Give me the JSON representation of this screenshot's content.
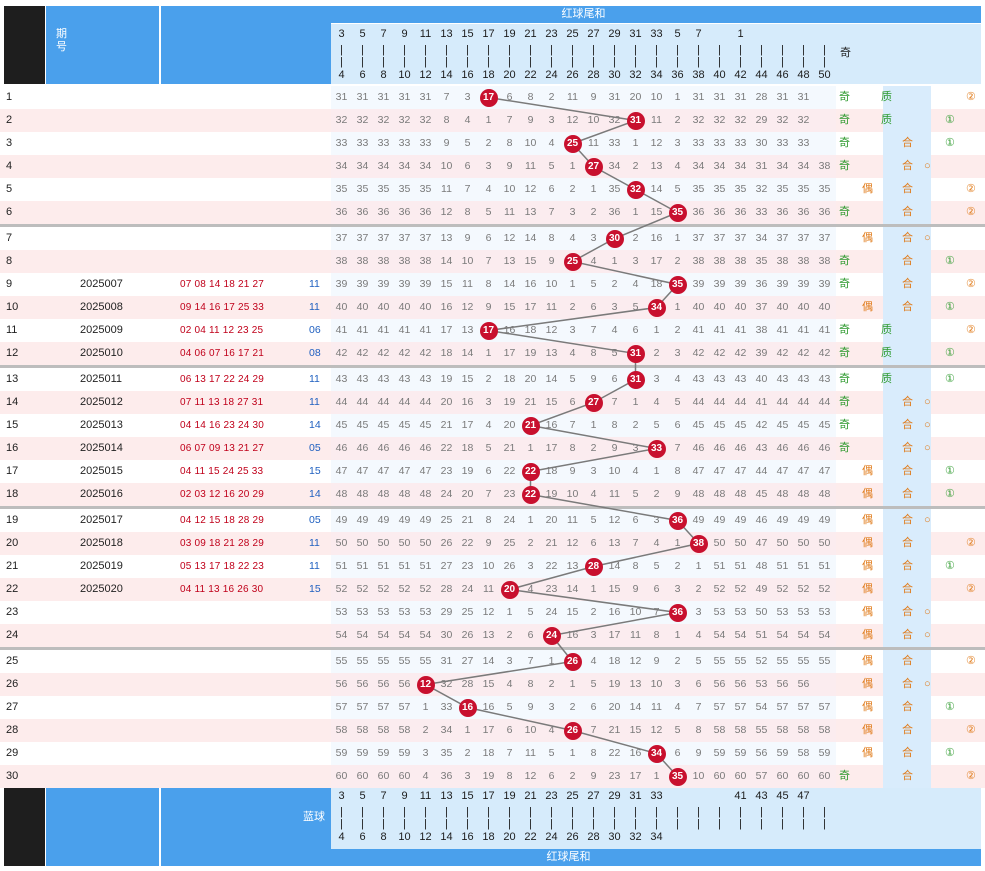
{
  "header": {
    "top_title": "红球尾和",
    "issue_label": "期号",
    "blue_label": "蓝球",
    "bottom_title": "红球尾和",
    "odd_label": "奇"
  },
  "columns": {
    "top": [
      "3",
      "5",
      "7",
      "9",
      "11",
      "13",
      "15",
      "17",
      "19",
      "21",
      "23",
      "25",
      "27",
      "29",
      "31",
      "33",
      "5",
      "7",
      "",
      "1",
      "",
      "",
      "",
      ""
    ],
    "bottom": [
      "4",
      "6",
      "8",
      "10",
      "12",
      "14",
      "16",
      "18",
      "20",
      "22",
      "24",
      "26",
      "28",
      "30",
      "32",
      "34",
      "36",
      "38",
      "40",
      "42",
      "44",
      "46",
      "48",
      "50"
    ],
    "foot_top": [
      "3",
      "5",
      "7",
      "9",
      "11",
      "13",
      "15",
      "17",
      "19",
      "21",
      "23",
      "25",
      "27",
      "29",
      "31",
      "33",
      "",
      "",
      "",
      "41",
      "43",
      "45",
      "47",
      ""
    ],
    "foot_bottom": [
      "4",
      "6",
      "8",
      "10",
      "12",
      "14",
      "16",
      "18",
      "20",
      "22",
      "24",
      "26",
      "28",
      "30",
      "32",
      "34",
      "",
      "",
      "",
      "",
      "",
      "",
      "",
      ""
    ]
  },
  "rows": [
    {
      "no": "1",
      "code": "",
      "reds": "",
      "blue": "",
      "vals": [
        "31",
        "31",
        "31",
        "31",
        "31",
        "7",
        "3",
        "",
        "6",
        "8",
        "2",
        "11",
        "9",
        "31",
        "20",
        "10",
        "1",
        "31",
        "31",
        "31",
        "28",
        "31",
        "31",
        ""
      ],
      "ball": "17",
      "ball_col": 7,
      "odd": "奇",
      "prime": "质",
      "cls": "",
      "route": "②"
    },
    {
      "no": "2",
      "code": "",
      "reds": "",
      "blue": "",
      "vals": [
        "32",
        "32",
        "32",
        "32",
        "32",
        "8",
        "4",
        "1",
        "7",
        "9",
        "3",
        "12",
        "10",
        "32",
        "",
        "11",
        "2",
        "32",
        "32",
        "32",
        "29",
        "32",
        "32",
        ""
      ],
      "ball": "31",
      "ball_col": 14,
      "odd": "奇",
      "prime": "质",
      "cls": "",
      "route": "①"
    },
    {
      "no": "3",
      "code": "",
      "reds": "",
      "blue": "",
      "vals": [
        "33",
        "33",
        "33",
        "33",
        "33",
        "9",
        "5",
        "2",
        "8",
        "10",
        "4",
        "",
        "11",
        "33",
        "1",
        "12",
        "3",
        "33",
        "33",
        "33",
        "30",
        "33",
        "33",
        ""
      ],
      "ball": "25",
      "ball_col": 11,
      "odd": "奇",
      "prime": "",
      "cls": "合",
      "route": "①"
    },
    {
      "no": "4",
      "code": "",
      "reds": "",
      "blue": "",
      "vals": [
        "34",
        "34",
        "34",
        "34",
        "34",
        "10",
        "6",
        "3",
        "9",
        "11",
        "5",
        "1",
        "",
        "34",
        "2",
        "13",
        "4",
        "34",
        "34",
        "34",
        "31",
        "34",
        "34",
        "38"
      ],
      "ball": "27",
      "ball_col": 12,
      "odd": "奇",
      "prime": "",
      "cls": "合",
      "route": "○"
    },
    {
      "no": "5",
      "code": "",
      "reds": "",
      "blue": "",
      "vals": [
        "35",
        "35",
        "35",
        "35",
        "35",
        "11",
        "7",
        "4",
        "10",
        "12",
        "6",
        "2",
        "1",
        "35",
        "",
        "14",
        "5",
        "35",
        "35",
        "35",
        "32",
        "35",
        "35",
        "35"
      ],
      "ball": "32",
      "ball_col": 14,
      "odd": "偶",
      "prime": "",
      "cls": "合",
      "route": "②"
    },
    {
      "no": "6",
      "code": "",
      "reds": "",
      "blue": "",
      "vals": [
        "36",
        "36",
        "36",
        "36",
        "36",
        "12",
        "8",
        "5",
        "11",
        "13",
        "7",
        "3",
        "2",
        "36",
        "1",
        "15",
        "",
        "36",
        "36",
        "36",
        "33",
        "36",
        "36",
        "36"
      ],
      "ball": "35",
      "ball_col": 16,
      "odd": "奇",
      "prime": "",
      "cls": "合",
      "route": "②"
    },
    {
      "no": "7",
      "code": "",
      "reds": "",
      "blue": "",
      "vals": [
        "37",
        "37",
        "37",
        "37",
        "37",
        "13",
        "9",
        "6",
        "12",
        "14",
        "8",
        "4",
        "3",
        "",
        "2",
        "16",
        "1",
        "37",
        "37",
        "37",
        "34",
        "37",
        "37",
        "37"
      ],
      "ball": "30",
      "ball_col": 13,
      "odd": "偶",
      "prime": "",
      "cls": "合",
      "route": "○"
    },
    {
      "no": "8",
      "code": "",
      "reds": "",
      "blue": "",
      "vals": [
        "38",
        "38",
        "38",
        "38",
        "38",
        "14",
        "10",
        "7",
        "13",
        "15",
        "9",
        "",
        "4",
        "1",
        "3",
        "17",
        "2",
        "38",
        "38",
        "38",
        "35",
        "38",
        "38",
        "38"
      ],
      "ball": "25",
      "ball_col": 11,
      "odd": "奇",
      "prime": "",
      "cls": "合",
      "route": "①"
    },
    {
      "no": "9",
      "code": "2025007",
      "reds": "07 08 14 18 21 27",
      "blue": "11",
      "vals": [
        "39",
        "39",
        "39",
        "39",
        "39",
        "15",
        "11",
        "8",
        "14",
        "16",
        "10",
        "1",
        "5",
        "2",
        "4",
        "18",
        "",
        "39",
        "39",
        "39",
        "36",
        "39",
        "39",
        "39"
      ],
      "ball": "35",
      "ball_col": 16,
      "odd": "奇",
      "prime": "",
      "cls": "合",
      "route": "②"
    },
    {
      "no": "10",
      "code": "2025008",
      "reds": "09 14 16 17 25 33",
      "blue": "11",
      "vals": [
        "40",
        "40",
        "40",
        "40",
        "40",
        "16",
        "12",
        "9",
        "15",
        "17",
        "11",
        "2",
        "6",
        "3",
        "5",
        "",
        "1",
        "40",
        "40",
        "40",
        "37",
        "40",
        "40",
        "40"
      ],
      "ball": "34",
      "ball_col": 15,
      "odd": "偶",
      "prime": "",
      "cls": "合",
      "route": "①"
    },
    {
      "no": "11",
      "code": "2025009",
      "reds": "02 04 11 12 23 25",
      "blue": "06",
      "vals": [
        "41",
        "41",
        "41",
        "41",
        "41",
        "17",
        "13",
        "",
        "16",
        "18",
        "12",
        "3",
        "7",
        "4",
        "6",
        "1",
        "2",
        "41",
        "41",
        "41",
        "38",
        "41",
        "41",
        "41"
      ],
      "ball": "17",
      "ball_col": 7,
      "odd": "奇",
      "prime": "质",
      "cls": "",
      "route": "②"
    },
    {
      "no": "12",
      "code": "2025010",
      "reds": "04 06 07 16 17 21",
      "blue": "08",
      "vals": [
        "42",
        "42",
        "42",
        "42",
        "42",
        "18",
        "14",
        "1",
        "17",
        "19",
        "13",
        "4",
        "8",
        "5",
        "",
        "2",
        "3",
        "42",
        "42",
        "42",
        "39",
        "42",
        "42",
        "42"
      ],
      "ball": "31",
      "ball_col": 14,
      "odd": "奇",
      "prime": "质",
      "cls": "",
      "route": "①"
    },
    {
      "no": "13",
      "code": "2025011",
      "reds": "06 13 17 22 24 29",
      "blue": "11",
      "vals": [
        "43",
        "43",
        "43",
        "43",
        "43",
        "19",
        "15",
        "2",
        "18",
        "20",
        "14",
        "5",
        "9",
        "6",
        "",
        "3",
        "4",
        "43",
        "43",
        "43",
        "40",
        "43",
        "43",
        "43"
      ],
      "ball": "31",
      "ball_col": 14,
      "odd": "奇",
      "prime": "质",
      "cls": "",
      "route": "①"
    },
    {
      "no": "14",
      "code": "2025012",
      "reds": "07 11 13 18 27 31",
      "blue": "11",
      "vals": [
        "44",
        "44",
        "44",
        "44",
        "44",
        "20",
        "16",
        "3",
        "19",
        "21",
        "15",
        "6",
        "",
        "7",
        "1",
        "4",
        "5",
        "44",
        "44",
        "44",
        "41",
        "44",
        "44",
        "44"
      ],
      "ball": "27",
      "ball_col": 12,
      "odd": "奇",
      "prime": "",
      "cls": "合",
      "route": "○"
    },
    {
      "no": "15",
      "code": "2025013",
      "reds": "04 14 16 23 24 30",
      "blue": "14",
      "vals": [
        "45",
        "45",
        "45",
        "45",
        "45",
        "21",
        "17",
        "4",
        "20",
        "",
        "16",
        "7",
        "1",
        "8",
        "2",
        "5",
        "6",
        "45",
        "45",
        "45",
        "42",
        "45",
        "45",
        "45"
      ],
      "ball": "21",
      "ball_col": 9,
      "odd": "奇",
      "prime": "",
      "cls": "合",
      "route": "○"
    },
    {
      "no": "16",
      "code": "2025014",
      "reds": "06 07 09 13 21 27",
      "blue": "05",
      "vals": [
        "46",
        "46",
        "46",
        "46",
        "46",
        "22",
        "18",
        "5",
        "21",
        "1",
        "17",
        "8",
        "2",
        "9",
        "3",
        "",
        "7",
        "46",
        "46",
        "46",
        "43",
        "46",
        "46",
        "46"
      ],
      "ball": "33",
      "ball_col": 15,
      "odd": "奇",
      "prime": "",
      "cls": "合",
      "route": "○"
    },
    {
      "no": "17",
      "code": "2025015",
      "reds": "04 11 15 24 25 33",
      "blue": "15",
      "vals": [
        "47",
        "47",
        "47",
        "47",
        "47",
        "23",
        "19",
        "6",
        "22",
        "",
        "18",
        "9",
        "3",
        "10",
        "4",
        "1",
        "8",
        "47",
        "47",
        "47",
        "44",
        "47",
        "47",
        "47"
      ],
      "ball": "22",
      "ball_col": 9,
      "odd": "偶",
      "prime": "",
      "cls": "合",
      "route": "①"
    },
    {
      "no": "18",
      "code": "2025016",
      "reds": "02 03 12 16 20 29",
      "blue": "14",
      "vals": [
        "48",
        "48",
        "48",
        "48",
        "48",
        "24",
        "20",
        "7",
        "23",
        "",
        "19",
        "10",
        "4",
        "11",
        "5",
        "2",
        "9",
        "48",
        "48",
        "48",
        "45",
        "48",
        "48",
        "48"
      ],
      "ball": "22",
      "ball_col": 9,
      "odd": "偶",
      "prime": "",
      "cls": "合",
      "route": "①"
    },
    {
      "no": "19",
      "code": "2025017",
      "reds": "04 12 15 18 28 29",
      "blue": "05",
      "vals": [
        "49",
        "49",
        "49",
        "49",
        "49",
        "25",
        "21",
        "8",
        "24",
        "1",
        "20",
        "11",
        "5",
        "12",
        "6",
        "3",
        "",
        "49",
        "49",
        "49",
        "46",
        "49",
        "49",
        "49"
      ],
      "ball": "36",
      "ball_col": 16,
      "odd": "偶",
      "prime": "",
      "cls": "合",
      "route": "○"
    },
    {
      "no": "20",
      "code": "2025018",
      "reds": "03 09 18 21 28 29",
      "blue": "11",
      "vals": [
        "50",
        "50",
        "50",
        "50",
        "50",
        "26",
        "22",
        "9",
        "25",
        "2",
        "21",
        "12",
        "6",
        "13",
        "7",
        "4",
        "1",
        "",
        "50",
        "50",
        "47",
        "50",
        "50",
        "50"
      ],
      "ball": "38",
      "ball_col": 17,
      "odd": "偶",
      "prime": "",
      "cls": "合",
      "route": "②"
    },
    {
      "no": "21",
      "code": "2025019",
      "reds": "05 13 17 18 22 23",
      "blue": "11",
      "vals": [
        "51",
        "51",
        "51",
        "51",
        "51",
        "27",
        "23",
        "10",
        "26",
        "3",
        "22",
        "13",
        "",
        "14",
        "8",
        "5",
        "2",
        "1",
        "51",
        "51",
        "48",
        "51",
        "51",
        "51"
      ],
      "ball": "28",
      "ball_col": 12,
      "odd": "偶",
      "prime": "",
      "cls": "合",
      "route": "①"
    },
    {
      "no": "22",
      "code": "2025020",
      "reds": "04 11 13 16 26 30",
      "blue": "15",
      "vals": [
        "52",
        "52",
        "52",
        "52",
        "52",
        "28",
        "24",
        "11",
        "",
        "4",
        "23",
        "14",
        "1",
        "15",
        "9",
        "6",
        "3",
        "2",
        "52",
        "52",
        "49",
        "52",
        "52",
        "52"
      ],
      "ball": "20",
      "ball_col": 8,
      "odd": "偶",
      "prime": "",
      "cls": "合",
      "route": "②"
    },
    {
      "no": "23",
      "code": "",
      "reds": "",
      "blue": "",
      "vals": [
        "53",
        "53",
        "53",
        "53",
        "53",
        "29",
        "25",
        "12",
        "1",
        "5",
        "24",
        "15",
        "2",
        "16",
        "10",
        "7",
        "",
        "3",
        "53",
        "53",
        "50",
        "53",
        "53",
        "53"
      ],
      "ball": "36",
      "ball_col": 16,
      "odd": "偶",
      "prime": "",
      "cls": "合",
      "route": "○"
    },
    {
      "no": "24",
      "code": "",
      "reds": "",
      "blue": "",
      "vals": [
        "54",
        "54",
        "54",
        "54",
        "54",
        "30",
        "26",
        "13",
        "2",
        "6",
        "",
        "16",
        "3",
        "17",
        "11",
        "8",
        "1",
        "4",
        "54",
        "54",
        "51",
        "54",
        "54",
        "54"
      ],
      "ball": "24",
      "ball_col": 10,
      "odd": "偶",
      "prime": "",
      "cls": "合",
      "route": "○"
    },
    {
      "no": "25",
      "code": "",
      "reds": "",
      "blue": "",
      "vals": [
        "55",
        "55",
        "55",
        "55",
        "55",
        "31",
        "27",
        "14",
        "3",
        "7",
        "1",
        "",
        "4",
        "18",
        "12",
        "9",
        "2",
        "5",
        "55",
        "55",
        "52",
        "55",
        "55",
        "55"
      ],
      "ball": "26",
      "ball_col": 11,
      "odd": "偶",
      "prime": "",
      "cls": "合",
      "route": "②"
    },
    {
      "no": "26",
      "code": "",
      "reds": "",
      "blue": "",
      "vals": [
        "56",
        "56",
        "56",
        "56",
        "",
        "32",
        "28",
        "15",
        "4",
        "8",
        "2",
        "1",
        "5",
        "19",
        "13",
        "10",
        "3",
        "6",
        "56",
        "56",
        "53",
        "56",
        "56",
        ""
      ],
      "ball": "12",
      "ball_col": 4,
      "odd": "偶",
      "prime": "",
      "cls": "合",
      "route": "○"
    },
    {
      "no": "27",
      "code": "",
      "reds": "",
      "blue": "",
      "vals": [
        "57",
        "57",
        "57",
        "57",
        "1",
        "33",
        "",
        "16",
        "5",
        "9",
        "3",
        "2",
        "6",
        "20",
        "14",
        "11",
        "4",
        "7",
        "57",
        "57",
        "54",
        "57",
        "57",
        "57"
      ],
      "ball": "16",
      "ball_col": 6,
      "odd": "偶",
      "prime": "",
      "cls": "合",
      "route": "①"
    },
    {
      "no": "28",
      "code": "",
      "reds": "",
      "blue": "",
      "vals": [
        "58",
        "58",
        "58",
        "58",
        "2",
        "34",
        "1",
        "17",
        "6",
        "10",
        "4",
        "",
        "7",
        "21",
        "15",
        "12",
        "5",
        "8",
        "58",
        "58",
        "55",
        "58",
        "58",
        "58"
      ],
      "ball": "26",
      "ball_col": 11,
      "odd": "偶",
      "prime": "",
      "cls": "合",
      "route": "②"
    },
    {
      "no": "29",
      "code": "",
      "reds": "",
      "blue": "",
      "vals": [
        "59",
        "59",
        "59",
        "59",
        "3",
        "35",
        "2",
        "18",
        "7",
        "11",
        "5",
        "1",
        "8",
        "22",
        "16",
        "",
        "6",
        "9",
        "59",
        "59",
        "56",
        "59",
        "58",
        "59"
      ],
      "ball": "34",
      "ball_col": 15,
      "odd": "偶",
      "prime": "",
      "cls": "合",
      "route": "①"
    },
    {
      "no": "30",
      "code": "",
      "reds": "",
      "blue": "",
      "vals": [
        "60",
        "60",
        "60",
        "60",
        "4",
        "36",
        "3",
        "19",
        "8",
        "12",
        "6",
        "2",
        "9",
        "23",
        "17",
        "1",
        "",
        "10",
        "60",
        "60",
        "57",
        "60",
        "60",
        "60"
      ],
      "ball": "35",
      "ball_col": 16,
      "odd": "奇",
      "prime": "",
      "cls": "合",
      "route": "②"
    }
  ],
  "colors": {
    "header": "#4aa0ec",
    "ball": "#c8102e",
    "line": "#7a7a7a",
    "odd": "#2e9a2e",
    "even": "#e07b1a"
  }
}
